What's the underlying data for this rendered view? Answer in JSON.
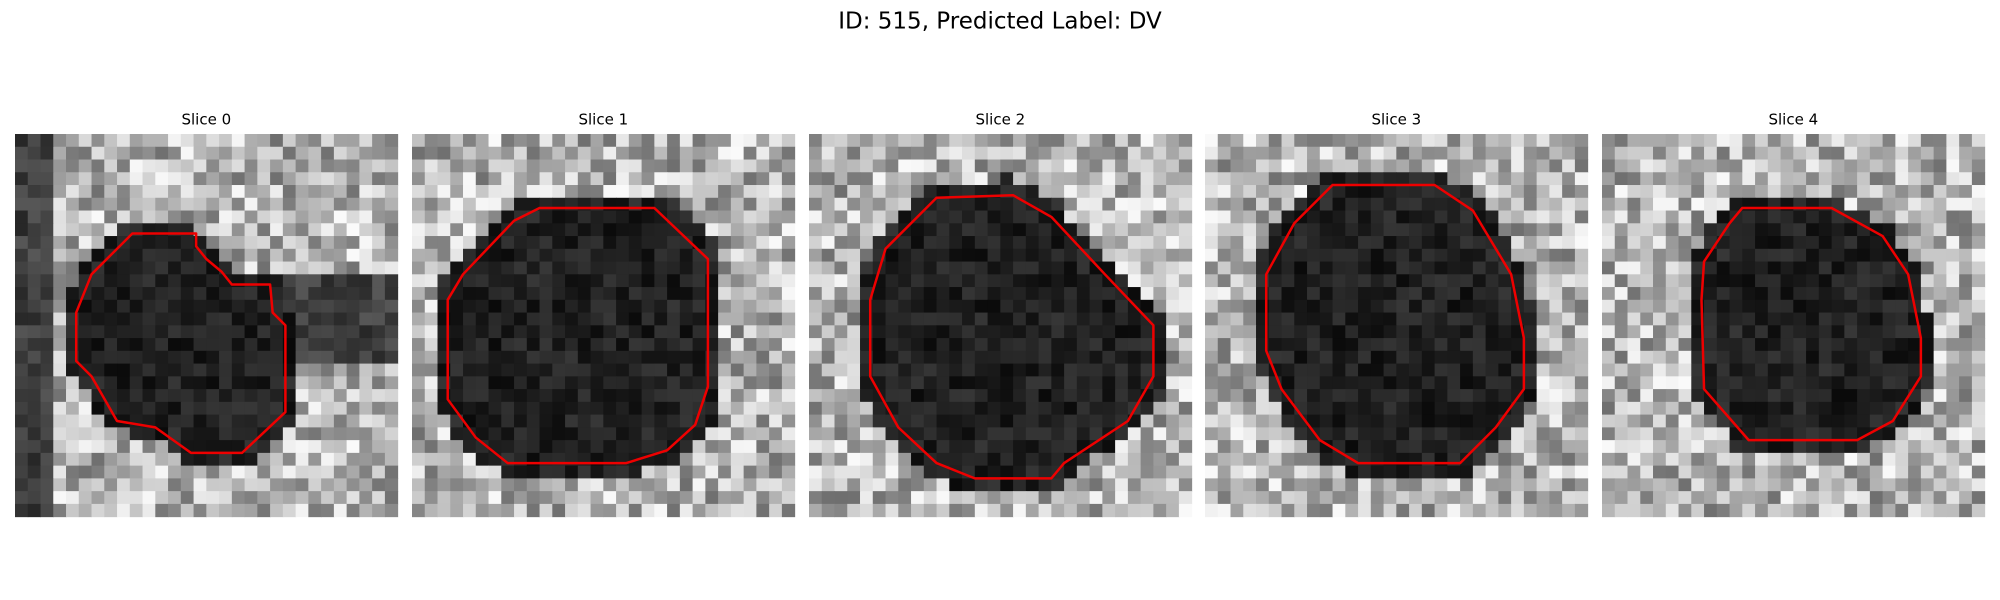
{
  "header": {
    "title": "ID: 515, Predicted Label: DV"
  },
  "panels": [
    {
      "title": "Slice 0"
    },
    {
      "title": "Slice 1"
    },
    {
      "title": "Slice 2"
    },
    {
      "title": "Slice 3"
    },
    {
      "title": "Slice 4"
    }
  ]
}
